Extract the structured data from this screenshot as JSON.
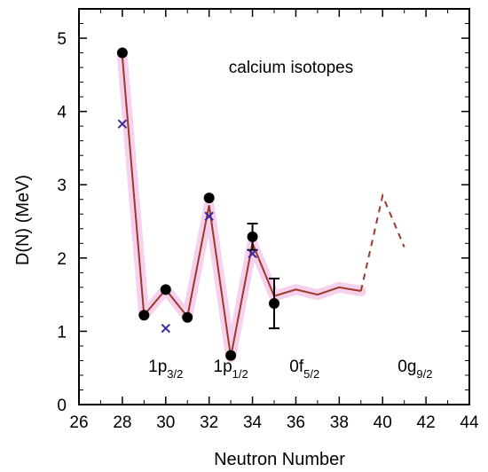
{
  "chart_data": {
    "type": "line",
    "annotation": "calcium isotopes",
    "xlabel": "Neutron Number",
    "ylabel": "D(N) (MeV)",
    "xlim": [
      26,
      44
    ],
    "ylim": [
      0,
      5.4
    ],
    "x_ticks": [
      26,
      28,
      30,
      32,
      34,
      36,
      38,
      40,
      42,
      44
    ],
    "y_ticks": [
      0,
      1,
      2,
      3,
      4,
      5
    ],
    "x_tick_labels": [
      "26",
      "28",
      "30",
      "32",
      "34",
      "36",
      "38",
      "40",
      "42",
      "44"
    ],
    "y_tick_labels": [
      "0",
      "1",
      "2",
      "3",
      "4",
      "5"
    ],
    "grid": false,
    "colors": {
      "line": "#9b3a2a",
      "band": "#f4c9ea",
      "points": "#000000",
      "crosses": "#3a2a9a"
    },
    "series": [
      {
        "style": "solid-line-with-band",
        "points": [
          {
            "x": 28,
            "y": 4.75
          },
          {
            "x": 29,
            "y": 1.22
          },
          {
            "x": 30,
            "y": 1.57
          },
          {
            "x": 31,
            "y": 1.2
          },
          {
            "x": 32,
            "y": 2.72
          },
          {
            "x": 33,
            "y": 0.65
          },
          {
            "x": 34,
            "y": 2.2
          },
          {
            "x": 35,
            "y": 1.48
          },
          {
            "x": 36,
            "y": 1.57
          },
          {
            "x": 37,
            "y": 1.5
          },
          {
            "x": 38,
            "y": 1.6
          },
          {
            "x": 39,
            "y": 1.55
          }
        ]
      },
      {
        "style": "dashed-line",
        "points": [
          {
            "x": 39,
            "y": 1.55
          },
          {
            "x": 40,
            "y": 2.85
          },
          {
            "x": 41,
            "y": 2.15
          }
        ]
      },
      {
        "style": "filled-circles",
        "points": [
          {
            "x": 28,
            "y": 4.8
          },
          {
            "x": 29,
            "y": 1.22
          },
          {
            "x": 30,
            "y": 1.57
          },
          {
            "x": 31,
            "y": 1.19
          },
          {
            "x": 32,
            "y": 2.82
          },
          {
            "x": 33,
            "y": 0.67
          },
          {
            "x": 34,
            "y": 2.29,
            "err": 0.18
          },
          {
            "x": 35,
            "y": 1.38,
            "err": 0.34
          }
        ]
      },
      {
        "style": "crosses",
        "points": [
          {
            "x": 28,
            "y": 3.83
          },
          {
            "x": 30,
            "y": 1.04
          },
          {
            "x": 32,
            "y": 2.57
          },
          {
            "x": 34,
            "y": 2.06
          }
        ]
      }
    ],
    "orbital_labels": [
      {
        "main": "1p",
        "sub": "3/2",
        "x": 30
      },
      {
        "main": "1p",
        "sub": "1/2",
        "x": 33
      },
      {
        "main": "0f",
        "sub": "5/2",
        "x": 36.4
      },
      {
        "main": "0g",
        "sub": "9/2",
        "x": 41.5
      }
    ]
  }
}
